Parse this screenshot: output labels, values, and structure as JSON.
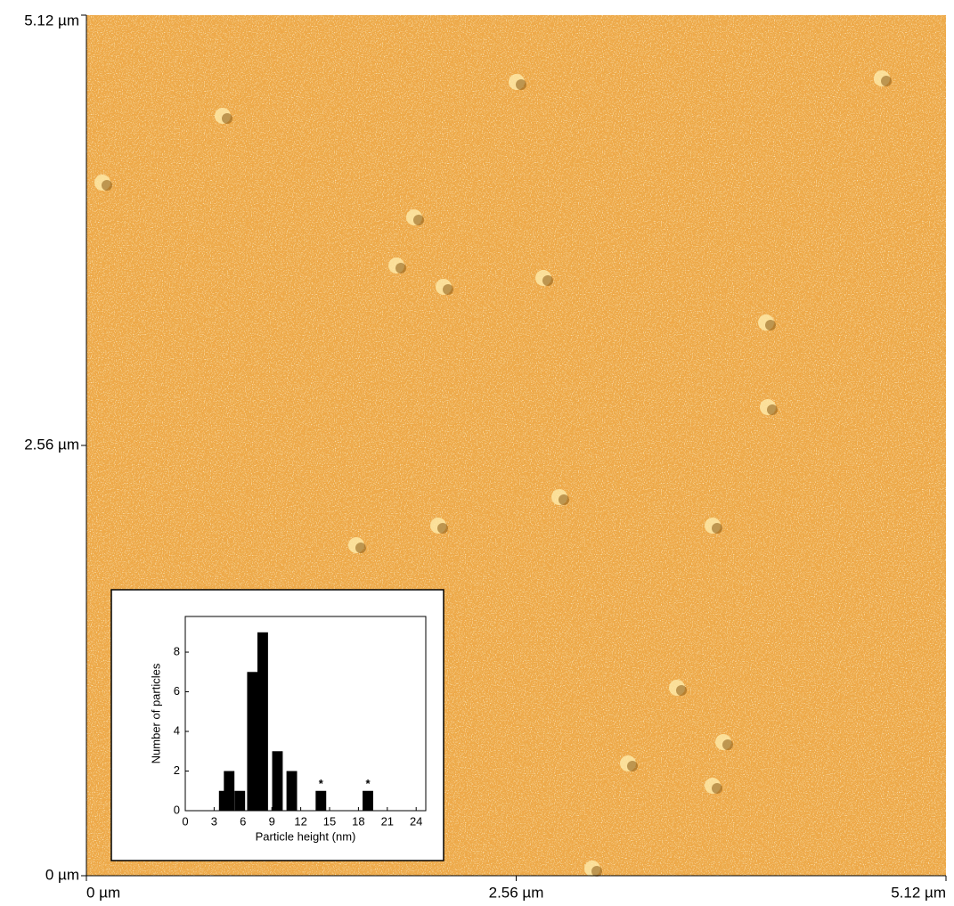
{
  "chart_data": [
    {
      "type": "image",
      "xlim": [
        0,
        5.12
      ],
      "ylim": [
        0,
        5.12
      ],
      "xticks": [
        {
          "value": 0,
          "label": "0 µm"
        },
        {
          "value": 2.56,
          "label": "2.56 µm"
        },
        {
          "value": 5.12,
          "label": "5.12 µm"
        }
      ],
      "yticks": [
        {
          "value": 0,
          "label": "0 µm"
        },
        {
          "value": 2.56,
          "label": "2.56 µm"
        },
        {
          "value": 5.12,
          "label": "5.12 µm"
        }
      ],
      "color": "#eea848"
    },
    {
      "type": "bar",
      "xlabel": "Particle height (nm)",
      "ylabel": "Number of particles",
      "x": [
        4.05,
        4.56,
        5.67,
        6.98,
        8.05,
        9.58,
        11.07,
        14.1,
        18.98
      ],
      "values": [
        1,
        2,
        1,
        7,
        9,
        3,
        2,
        1,
        1
      ],
      "bar_width": 1.1,
      "color": "#000000",
      "xlim": [
        0,
        25
      ],
      "ylim": [
        0,
        9.8
      ],
      "xticks": [
        0,
        3,
        6,
        9,
        12,
        15,
        18,
        21,
        24
      ],
      "yticks": [
        0,
        2,
        4,
        6,
        8
      ],
      "annotations": [
        {
          "text": "*",
          "x": 14.1,
          "y": 1
        },
        {
          "text": "*",
          "x": 18.98,
          "y": 1
        }
      ]
    }
  ]
}
